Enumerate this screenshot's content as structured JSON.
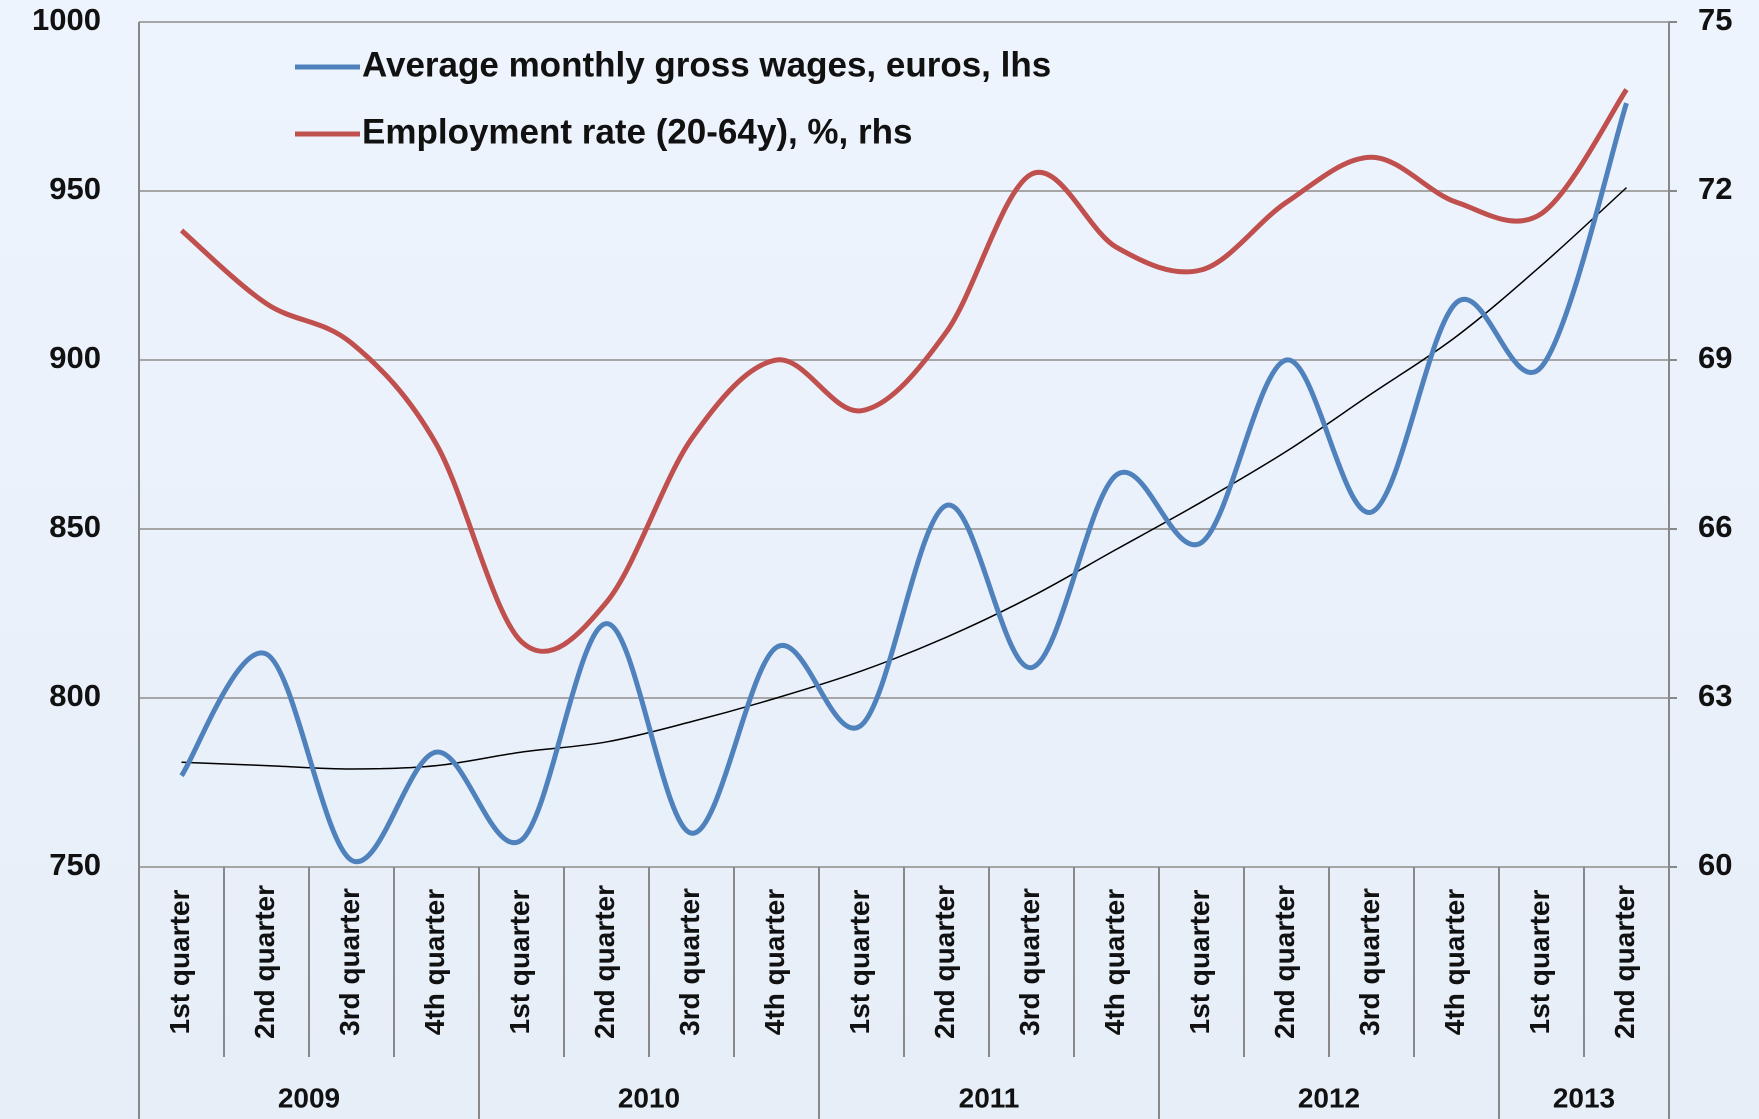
{
  "chart_data": {
    "type": "line",
    "category_groups": [
      {
        "label": "2009",
        "categories": [
          "1st quarter",
          "2nd quarter",
          "3rd quarter",
          "4th quarter"
        ]
      },
      {
        "label": "2010",
        "categories": [
          "1st quarter",
          "2nd quarter",
          "3rd quarter",
          "4th quarter"
        ]
      },
      {
        "label": "2011",
        "categories": [
          "1st quarter",
          "2nd quarter",
          "3rd quarter",
          "4th quarter"
        ]
      },
      {
        "label": "2012",
        "categories": [
          "1st quarter",
          "2nd quarter",
          "3rd quarter",
          "4th quarter"
        ]
      },
      {
        "label": "2013",
        "categories": [
          "1st quarter",
          "2nd quarter"
        ]
      }
    ],
    "series": [
      {
        "name": "Average monthly gross wages, euros, lhs",
        "color": "#4f81bd",
        "values": [
          777,
          813,
          752,
          784,
          758,
          822,
          760,
          815,
          792,
          857,
          809,
          866,
          846,
          900,
          855,
          917,
          898,
          976
        ]
      },
      {
        "name": "Employment rate (20-64y), %, rhs",
        "color": "#c0504d",
        "axis": "y2",
        "values": [
          71.3,
          70.0,
          69.3,
          67.5,
          64.0,
          64.7,
          67.6,
          69.0,
          68.1,
          69.5,
          72.3,
          71.0,
          70.6,
          71.8,
          72.6,
          71.8,
          71.6,
          73.8
        ]
      }
    ],
    "trendline": {
      "color": "#000000",
      "values": [
        781,
        780,
        779,
        780,
        784,
        787,
        793,
        800,
        808,
        818,
        830,
        844,
        858,
        873,
        890,
        907,
        928,
        951
      ]
    },
    "ylim": [
      750,
      1000
    ],
    "yticks": [
      750,
      800,
      850,
      900,
      950,
      1000
    ],
    "y2lim": [
      60,
      75
    ],
    "y2ticks": [
      60,
      63,
      66,
      69,
      72,
      75
    ],
    "grid": true,
    "legend": "upper left"
  }
}
